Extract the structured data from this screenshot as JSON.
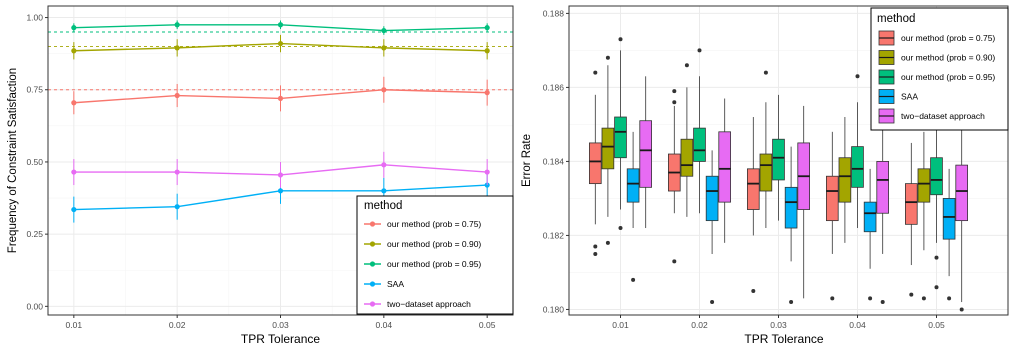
{
  "colors": {
    "prob075": "#F8766D",
    "prob090": "#A3A500",
    "prob095": "#00BF7D",
    "saa": "#00B0F6",
    "two_dataset": "#E76BF3",
    "grid_major": "#EBEBEB",
    "grid_minor": "#F5F5F5",
    "panel_border": "#333333",
    "axis_text": "#4D4D4D"
  },
  "chart_data": [
    {
      "type": "line",
      "xlabel": "TPR Tolerance",
      "ylabel": "Frequency of Constraint Satisfaction",
      "x": [
        0.01,
        0.02,
        0.03,
        0.04,
        0.05
      ],
      "x_ticks": [
        "0.01",
        "0.02",
        "0.03",
        "0.04",
        "0.05"
      ],
      "xlim": [
        0.0075,
        0.0525
      ],
      "ylim": [
        -0.03,
        1.04
      ],
      "y_ticks": [
        "0.00",
        "0.25",
        "0.50",
        "0.75",
        "1.00"
      ],
      "y_tick_values": [
        0,
        0.25,
        0.5,
        0.75,
        1.0
      ],
      "grid": true,
      "legend_position": "right",
      "legend": {
        "title": "method",
        "items": [
          "our method (prob = 0.75)",
          "our method (prob = 0.90)",
          "our method (prob = 0.95)",
          "SAA",
          "two−dataset approach"
        ]
      },
      "reference_lines": [
        {
          "y": 0.75,
          "color_key": "prob075"
        },
        {
          "y": 0.9,
          "color_key": "prob090"
        },
        {
          "y": 0.95,
          "color_key": "prob095"
        }
      ],
      "series": [
        {
          "name": "our method (prob = 0.75)",
          "color_key": "prob075",
          "values": [
            0.705,
            0.73,
            0.72,
            0.75,
            0.74
          ],
          "lower": [
            0.665,
            0.69,
            0.675,
            0.705,
            0.695
          ],
          "upper": [
            0.745,
            0.77,
            0.765,
            0.795,
            0.785
          ]
        },
        {
          "name": "our method (prob = 0.90)",
          "color_key": "prob090",
          "values": [
            0.885,
            0.895,
            0.91,
            0.895,
            0.885
          ],
          "lower": [
            0.855,
            0.865,
            0.88,
            0.865,
            0.855
          ],
          "upper": [
            0.915,
            0.925,
            0.94,
            0.925,
            0.915
          ]
        },
        {
          "name": "our method (prob = 0.95)",
          "color_key": "prob095",
          "values": [
            0.965,
            0.975,
            0.975,
            0.955,
            0.965
          ],
          "lower": [
            0.95,
            0.96,
            0.96,
            0.94,
            0.95
          ],
          "upper": [
            0.98,
            0.99,
            0.99,
            0.97,
            0.98
          ]
        },
        {
          "name": "SAA",
          "color_key": "saa",
          "values": [
            0.335,
            0.345,
            0.4,
            0.4,
            0.42
          ],
          "lower": [
            0.29,
            0.3,
            0.355,
            0.355,
            0.375
          ],
          "upper": [
            0.38,
            0.39,
            0.445,
            0.445,
            0.465
          ]
        },
        {
          "name": "two−dataset approach",
          "color_key": "two_dataset",
          "values": [
            0.465,
            0.465,
            0.455,
            0.49,
            0.465
          ],
          "lower": [
            0.42,
            0.42,
            0.41,
            0.445,
            0.42
          ],
          "upper": [
            0.51,
            0.51,
            0.5,
            0.535,
            0.51
          ]
        }
      ]
    },
    {
      "type": "box",
      "xlabel": "TPR Tolerance",
      "ylabel": "Error Rate",
      "categories": [
        "0.01",
        "0.02",
        "0.03",
        "0.04",
        "0.05"
      ],
      "ylim": [
        0.17985,
        0.1882
      ],
      "y_ticks": [
        "0.180",
        "0.182",
        "0.184",
        "0.186",
        "0.188"
      ],
      "y_tick_values": [
        0.18,
        0.182,
        0.184,
        0.186,
        0.188
      ],
      "grid": true,
      "legend_position": "top-right",
      "legend": {
        "title": "method",
        "items": [
          "our method (prob = 0.75)",
          "our method (prob = 0.90)",
          "our method (prob = 0.95)",
          "SAA",
          "two−dataset approach"
        ]
      },
      "series": [
        {
          "name": "our method (prob = 0.75)",
          "color_key": "prob075",
          "boxes": [
            {
              "min": 0.1823,
              "q1": 0.1834,
              "median": 0.184,
              "q3": 0.1845,
              "max": 0.1858,
              "outliers": [
                0.1817,
                0.1815,
                0.1864
              ]
            },
            {
              "min": 0.1826,
              "q1": 0.1832,
              "median": 0.1837,
              "q3": 0.1842,
              "max": 0.1855,
              "outliers": [
                0.1813,
                0.1859,
                0.1856
              ]
            },
            {
              "min": 0.182,
              "q1": 0.1827,
              "median": 0.1834,
              "q3": 0.1838,
              "max": 0.1852,
              "outliers": [
                0.1805
              ]
            },
            {
              "min": 0.1815,
              "q1": 0.1824,
              "median": 0.1832,
              "q3": 0.1836,
              "max": 0.1848,
              "outliers": [
                0.1803
              ]
            },
            {
              "min": 0.1812,
              "q1": 0.1823,
              "median": 0.1829,
              "q3": 0.1834,
              "max": 0.1845,
              "outliers": [
                0.1804
              ]
            }
          ]
        },
        {
          "name": "our method (prob = 0.90)",
          "color_key": "prob090",
          "boxes": [
            {
              "min": 0.1825,
              "q1": 0.1838,
              "median": 0.1844,
              "q3": 0.1849,
              "max": 0.1866,
              "outliers": [
                0.1868,
                0.1818
              ]
            },
            {
              "min": 0.1825,
              "q1": 0.1836,
              "median": 0.1839,
              "q3": 0.1846,
              "max": 0.186,
              "outliers": [
                0.1866
              ]
            },
            {
              "min": 0.1822,
              "q1": 0.1832,
              "median": 0.1839,
              "q3": 0.1842,
              "max": 0.1856,
              "outliers": [
                0.1864
              ]
            },
            {
              "min": 0.1818,
              "q1": 0.1829,
              "median": 0.1836,
              "q3": 0.1841,
              "max": 0.1852,
              "outliers": []
            },
            {
              "min": 0.1816,
              "q1": 0.1829,
              "median": 0.1834,
              "q3": 0.1838,
              "max": 0.1848,
              "outliers": [
                0.1803
              ]
            }
          ]
        },
        {
          "name": "our method (prob = 0.95)",
          "color_key": "prob095",
          "boxes": [
            {
              "min": 0.1827,
              "q1": 0.1841,
              "median": 0.1848,
              "q3": 0.1852,
              "max": 0.187,
              "outliers": [
                0.1873,
                0.1822
              ]
            },
            {
              "min": 0.1826,
              "q1": 0.184,
              "median": 0.1843,
              "q3": 0.1849,
              "max": 0.1863,
              "outliers": [
                0.187
              ]
            },
            {
              "min": 0.1824,
              "q1": 0.1835,
              "median": 0.1841,
              "q3": 0.1846,
              "max": 0.1858,
              "outliers": []
            },
            {
              "min": 0.1822,
              "q1": 0.1833,
              "median": 0.1838,
              "q3": 0.1844,
              "max": 0.1856,
              "outliers": [
                0.1863
              ]
            },
            {
              "min": 0.1818,
              "q1": 0.1831,
              "median": 0.1835,
              "q3": 0.1841,
              "max": 0.1854,
              "outliers": [
                0.1806,
                0.1814
              ]
            }
          ]
        },
        {
          "name": "SAA",
          "color_key": "saa",
          "boxes": [
            {
              "min": 0.1822,
              "q1": 0.1829,
              "median": 0.1834,
              "q3": 0.1838,
              "max": 0.1848,
              "outliers": [
                0.1808
              ]
            },
            {
              "min": 0.1815,
              "q1": 0.1824,
              "median": 0.1832,
              "q3": 0.1836,
              "max": 0.1843,
              "outliers": [
                0.1802
              ]
            },
            {
              "min": 0.1813,
              "q1": 0.1822,
              "median": 0.1829,
              "q3": 0.1833,
              "max": 0.1844,
              "outliers": [
                0.1802
              ]
            },
            {
              "min": 0.1811,
              "q1": 0.1821,
              "median": 0.1826,
              "q3": 0.1829,
              "max": 0.1838,
              "outliers": [
                0.1803
              ]
            },
            {
              "min": 0.1809,
              "q1": 0.1819,
              "median": 0.1825,
              "q3": 0.183,
              "max": 0.1838,
              "outliers": [
                0.1803
              ]
            }
          ]
        },
        {
          "name": "two−dataset approach",
          "color_key": "two_dataset",
          "boxes": [
            {
              "min": 0.1822,
              "q1": 0.1833,
              "median": 0.1843,
              "q3": 0.1851,
              "max": 0.1863,
              "outliers": []
            },
            {
              "min": 0.1818,
              "q1": 0.1829,
              "median": 0.1838,
              "q3": 0.1848,
              "max": 0.1857,
              "outliers": []
            },
            {
              "min": 0.1803,
              "q1": 0.1827,
              "median": 0.1836,
              "q3": 0.1845,
              "max": 0.1855,
              "outliers": []
            },
            {
              "min": 0.1815,
              "q1": 0.1826,
              "median": 0.1835,
              "q3": 0.184,
              "max": 0.185,
              "outliers": [
                0.1802
              ]
            },
            {
              "min": 0.1802,
              "q1": 0.1824,
              "median": 0.1832,
              "q3": 0.1839,
              "max": 0.1852,
              "outliers": [
                0.18
              ]
            }
          ]
        }
      ]
    }
  ]
}
